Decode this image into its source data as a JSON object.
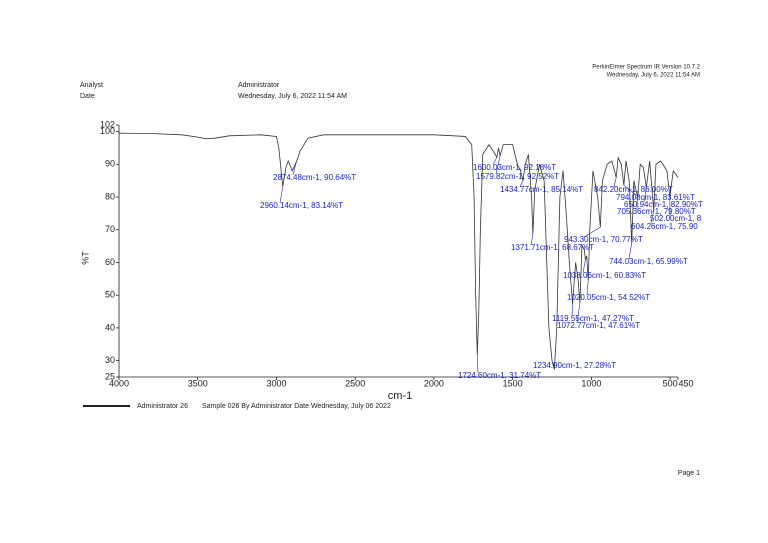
{
  "document": {
    "software": "PerkinElmer Spectrum IR Version 10.7.2",
    "printed": "Wednesday, July 6, 2022 11:54 AM",
    "analyst_label": "Analyst",
    "date_label": "Date",
    "analyst": "Administrator",
    "date": "Wednesday, July 6, 2022 11:54 AM",
    "sample_info": "Sample 026 By Administrator Date Wednesday, July 06 2022",
    "page": "Page 1"
  },
  "chart_data": {
    "type": "line",
    "xlabel": "cm-1",
    "ylabel": "%T",
    "xlim": [
      4000,
      450
    ],
    "ylim": [
      25,
      102
    ],
    "xticks": [
      4000,
      3500,
      3000,
      2500,
      2000,
      1500,
      1000,
      500,
      450
    ],
    "yticks": [
      25,
      30,
      40,
      50,
      60,
      70,
      80,
      90,
      100,
      102
    ],
    "x": [
      4000,
      3800,
      3600,
      3500,
      3450,
      3400,
      3300,
      3100,
      3000,
      2985,
      2960,
      2940,
      2925,
      2900,
      2874,
      2850,
      2800,
      2700,
      2000,
      1800,
      1760,
      1745,
      1735,
      1724.6,
      1715,
      1705,
      1690,
      1650,
      1600,
      1590,
      1580,
      1560,
      1500,
      1470,
      1450,
      1434.8,
      1420,
      1400,
      1380,
      1371.7,
      1360,
      1330,
      1300,
      1270,
      1250,
      1234.9,
      1220,
      1200,
      1180,
      1160,
      1140,
      1119.6,
      1100,
      1085,
      1072.8,
      1060,
      1045,
      1038.1,
      1030,
      1020.1,
      1010,
      990,
      960,
      943.3,
      930,
      900,
      870,
      842.2,
      830,
      810,
      794.1,
      780,
      760,
      744,
      730,
      705.4,
      690,
      670,
      650.9,
      630,
      604.3,
      590,
      560,
      520,
      502,
      480,
      450
    ],
    "series": [
      {
        "name": "Administrator 26",
        "color": "#333333",
        "values": [
          99.5,
          99.4,
          99,
          98.3,
          97.8,
          97.9,
          98.7,
          99,
          98.5,
          95,
          83.14,
          89,
          91,
          88,
          90.64,
          94,
          98,
          99,
          99,
          98.5,
          96,
          80,
          50,
          31.74,
          45,
          70,
          93,
          96,
          92.18,
          95,
          92.52,
          96,
          96,
          90,
          88,
          85.14,
          90,
          93,
          80,
          68.67,
          82,
          90,
          85,
          40,
          30,
          27.28,
          40,
          80,
          88,
          75,
          60,
          47.27,
          60,
          55,
          47.61,
          65,
          64,
          60.83,
          62,
          54.52,
          70,
          88,
          80,
          70.77,
          85,
          90,
          91,
          86,
          92,
          90,
          83.61,
          91,
          85,
          65.99,
          85,
          79.8,
          90,
          89,
          82.9,
          91,
          75.9,
          90,
          91,
          88,
          80,
          88,
          86
        ]
      }
    ],
    "annotations": [
      {
        "text": "2874.48cm-1, 90.64%T",
        "x": 2874.48,
        "y": 90.64
      },
      {
        "text": "2960.14cm-1, 83.14%T",
        "x": 2960.14,
        "y": 83.14
      },
      {
        "text": "1724.60cm-1, 31.74%T",
        "x": 1724.6,
        "y": 31.74
      },
      {
        "text": "1600.03cm-1, 92.18%T",
        "x": 1600.03,
        "y": 92.18
      },
      {
        "text": "1579.82cm-1, 92.52%T",
        "x": 1579.82,
        "y": 92.52
      },
      {
        "text": "1434.77cm-1, 85.14%T",
        "x": 1434.77,
        "y": 85.14
      },
      {
        "text": "1371.71cm-1, 68.67%T",
        "x": 1371.71,
        "y": 68.67
      },
      {
        "text": "1234.90cm-1, 27.28%T",
        "x": 1234.9,
        "y": 27.28
      },
      {
        "text": "1119.55cm-1, 47.27%T",
        "x": 1119.55,
        "y": 47.27
      },
      {
        "text": "1072.77cm-1, 47.61%T",
        "x": 1072.77,
        "y": 47.61
      },
      {
        "text": "1038.06cm-1, 60.83%T",
        "x": 1038.06,
        "y": 60.83
      },
      {
        "text": "1020.05cm-1, 54.52%T",
        "x": 1020.05,
        "y": 54.52
      },
      {
        "text": "943.30cm-1, 70.77%T",
        "x": 943.3,
        "y": 70.77
      },
      {
        "text": "744.03cm-1, 65.99%T",
        "x": 744.03,
        "y": 65.99
      },
      {
        "text": "842.20cm-1, 86.00%T",
        "x": 842.2,
        "y": 86
      },
      {
        "text": "794.08cm-1, 83.61%T",
        "x": 794.08,
        "y": 83.61
      },
      {
        "text": "705.36cm-1, 79.80%T",
        "x": 705.36,
        "y": 79.8
      },
      {
        "text": "650.94cm-1, 82.90%T",
        "x": 650.94,
        "y": 82.9
      },
      {
        "text": "604.26cm-1, 75.90",
        "x": 604.26,
        "y": 75.9
      },
      {
        "text": "502.00cm-1, 8",
        "x": 502,
        "y": 80
      }
    ]
  }
}
